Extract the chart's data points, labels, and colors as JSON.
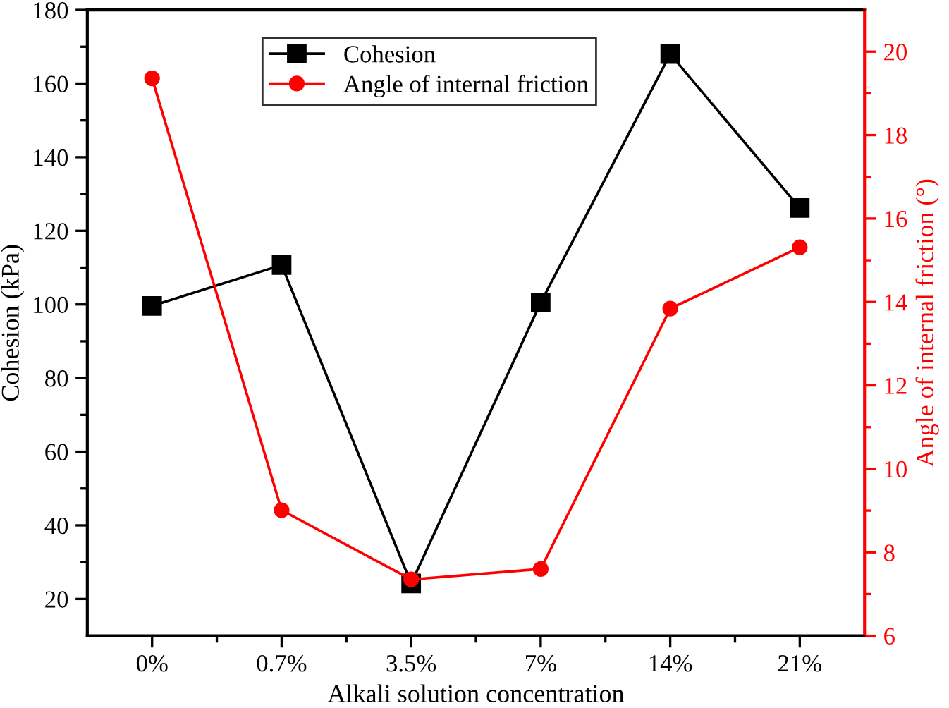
{
  "chart_data": {
    "type": "line",
    "xlabel": "Alkali solution concentration",
    "ylabel": "Cohesion (kPa)",
    "y2label": "Angle of internal friction (°)",
    "categories": [
      "0%",
      "0.7%",
      "3.5%",
      "7%",
      "14%",
      "21%"
    ],
    "series": [
      {
        "name": "Cohesion",
        "color": "#000000",
        "marker": "square",
        "values": [
          99.6,
          110.7,
          24.2,
          100.5,
          168.0,
          126.2
        ]
      },
      {
        "name": "Angle of internal friction",
        "color": "#ff0000",
        "marker": "circle",
        "axis": "y2",
        "values": [
          19.36,
          9.01,
          7.35,
          7.6,
          13.84,
          15.31
        ]
      }
    ],
    "ylim": [
      10,
      180
    ],
    "yticks": [
      20,
      40,
      60,
      80,
      100,
      120,
      140,
      160,
      180
    ],
    "y2lim": [
      6,
      21
    ],
    "y2ticks": [
      6,
      8,
      10,
      12,
      14,
      16,
      18,
      20
    ],
    "legend": "top",
    "grid": false,
    "line_style": "solid"
  }
}
